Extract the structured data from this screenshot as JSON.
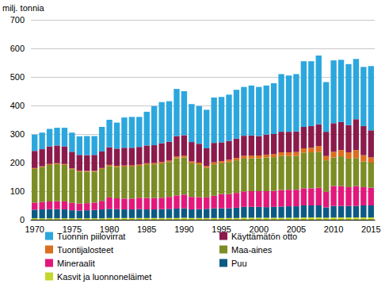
{
  "chart_data": {
    "type": "bar",
    "stacked": true,
    "grid": true,
    "legend": "bottom",
    "y_label": "milj. tonnia",
    "categories": [
      "1970",
      null,
      null,
      null,
      null,
      "1975",
      null,
      null,
      null,
      null,
      "1980",
      null,
      null,
      null,
      null,
      "1985",
      null,
      null,
      null,
      null,
      "1990",
      null,
      null,
      null,
      null,
      "1995",
      null,
      null,
      null,
      null,
      "2000",
      null,
      null,
      null,
      null,
      "2005",
      null,
      null,
      null,
      null,
      "2010",
      null,
      null,
      null,
      null,
      "2015"
    ],
    "ylim": [
      0,
      700
    ],
    "yticks": [
      0,
      100,
      200,
      300,
      400,
      500,
      600,
      700
    ],
    "series": [
      {
        "name": "Kasvit ja luonnoneläimet",
        "color": "#c3d62b",
        "values": [
          5,
          5,
          5,
          5,
          5,
          5,
          5,
          5,
          5,
          5,
          6,
          6,
          6,
          6,
          6,
          6,
          6,
          6,
          6,
          6,
          7,
          6,
          6,
          6,
          6,
          6,
          6,
          6,
          7,
          7,
          7,
          7,
          7,
          7,
          7,
          7,
          8,
          8,
          8,
          7,
          8,
          8,
          8,
          8,
          8,
          8
        ]
      },
      {
        "name": "Puu",
        "color": "#0b5a85",
        "values": [
          30,
          31,
          32,
          32,
          31,
          28,
          27,
          28,
          29,
          31,
          32,
          31,
          30,
          30,
          31,
          30,
          30,
          31,
          32,
          33,
          33,
          30,
          31,
          32,
          34,
          34,
          34,
          36,
          38,
          38,
          38,
          37,
          38,
          39,
          40,
          40,
          42,
          42,
          42,
          36,
          40,
          40,
          40,
          40,
          42,
          42
        ]
      },
      {
        "name": "Mineraalit",
        "color": "#e3187b",
        "values": [
          25,
          26,
          27,
          28,
          28,
          26,
          25,
          25,
          26,
          30,
          40,
          38,
          38,
          38,
          40,
          40,
          40,
          40,
          42,
          46,
          48,
          44,
          42,
          40,
          44,
          50,
          50,
          52,
          54,
          55,
          55,
          56,
          56,
          58,
          58,
          58,
          60,
          60,
          62,
          55,
          70,
          70,
          66,
          70,
          64,
          62
        ]
      },
      {
        "name": "Maa-aines",
        "color": "#7b8d24",
        "values": [
          118,
          122,
          128,
          130,
          128,
          118,
          112,
          110,
          108,
          112,
          110,
          110,
          112,
          112,
          112,
          118,
          118,
          120,
          122,
          130,
          130,
          118,
          115,
          104,
          110,
          108,
          112,
          114,
          115,
          115,
          115,
          118,
          118,
          120,
          118,
          118,
          125,
          126,
          126,
          110,
          100,
          104,
          100,
          98,
          90,
          88
        ]
      },
      {
        "name": "Tuontijalosteet",
        "color": "#dc6e1f",
        "values": [
          3,
          3,
          3,
          3,
          3,
          3,
          3,
          3,
          3,
          3,
          4,
          4,
          4,
          4,
          4,
          4,
          5,
          5,
          5,
          6,
          6,
          6,
          6,
          6,
          7,
          7,
          8,
          8,
          10,
          10,
          10,
          10,
          11,
          12,
          13,
          14,
          15,
          16,
          20,
          15,
          20,
          22,
          22,
          28,
          22,
          18
        ]
      },
      {
        "name": "Käyttämätön otto",
        "color": "#8b1b4c",
        "values": [
          60,
          60,
          62,
          62,
          62,
          58,
          55,
          55,
          56,
          58,
          62,
          60,
          62,
          62,
          62,
          62,
          62,
          66,
          66,
          72,
          72,
          68,
          66,
          62,
          68,
          66,
          66,
          68,
          70,
          70,
          68,
          70,
          70,
          72,
          72,
          72,
          75,
          76,
          76,
          85,
          100,
          98,
          95,
          108,
          102,
          95
        ]
      },
      {
        "name": "Tuonnin piilovirrat",
        "color": "#2ba7de",
        "values": [
          57,
          58,
          61,
          62,
          65,
          67,
          65,
          67,
          66,
          86,
          96,
          91,
          106,
          108,
          105,
          118,
          137,
          144,
          142,
          165,
          154,
          133,
          132,
          135,
          159,
          159,
          162,
          171,
          171,
          175,
          172,
          172,
          178,
          202,
          197,
          201,
          230,
          227,
          241,
          174,
          220,
          218,
          214,
          211,
          207,
          225
        ]
      }
    ]
  }
}
